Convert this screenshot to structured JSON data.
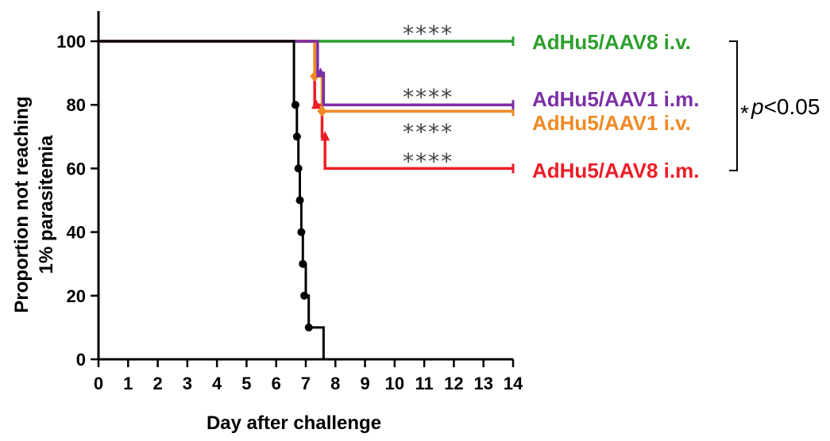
{
  "chart_data": {
    "type": "line",
    "subtype": "kaplan-meier step",
    "title": "",
    "xlabel": "Day after challenge",
    "ylabel_lines": [
      "Proportion not reaching",
      "1% parasitemia"
    ],
    "xlim": [
      0,
      14
    ],
    "ylim": [
      0,
      100
    ],
    "x_ticks": [
      "0",
      "1",
      "2",
      "3",
      "4",
      "5",
      "6",
      "7",
      "8",
      "9",
      "10",
      "11",
      "12",
      "13",
      "14"
    ],
    "y_ticks": [
      "0",
      "20",
      "40",
      "60",
      "80",
      "100"
    ],
    "grid": false,
    "series": [
      {
        "label": "",
        "color": "#000000",
        "marker": "circle",
        "steps": [
          [
            0,
            100
          ],
          [
            6.6,
            100
          ],
          [
            6.6,
            80
          ],
          [
            6.7,
            80
          ],
          [
            6.7,
            70
          ],
          [
            6.75,
            70
          ],
          [
            6.75,
            60
          ],
          [
            6.8,
            60
          ],
          [
            6.8,
            50
          ],
          [
            6.85,
            50
          ],
          [
            6.85,
            40
          ],
          [
            6.9,
            40
          ],
          [
            6.9,
            30
          ],
          [
            7.0,
            30
          ],
          [
            7.0,
            20
          ],
          [
            7.1,
            20
          ],
          [
            7.1,
            10
          ],
          [
            7.6,
            10
          ],
          [
            7.6,
            0
          ]
        ],
        "markers": [
          [
            6.65,
            80
          ],
          [
            6.7,
            70
          ],
          [
            6.75,
            60
          ],
          [
            6.8,
            50
          ],
          [
            6.85,
            40
          ],
          [
            6.9,
            30
          ],
          [
            6.95,
            20
          ],
          [
            7.1,
            10
          ]
        ]
      },
      {
        "label": "AdHu5/AAV8 i.v.",
        "color": "#2ca02c",
        "marker": "none",
        "steps": [
          [
            0,
            100
          ],
          [
            14,
            100
          ]
        ],
        "markers": []
      },
      {
        "label": "AdHu5/AAV1 i.m.",
        "color": "#7b2fa5",
        "marker": "triangle",
        "steps": [
          [
            0,
            100
          ],
          [
            7.4,
            100
          ],
          [
            7.4,
            90
          ],
          [
            7.6,
            90
          ],
          [
            7.6,
            80
          ],
          [
            14,
            80
          ]
        ],
        "markers": [
          [
            7.5,
            90
          ]
        ]
      },
      {
        "label": "AdHu5/AAV1 i.v.",
        "color": "#f08a24",
        "marker": "diamond",
        "steps": [
          [
            0,
            100
          ],
          [
            7.3,
            100
          ],
          [
            7.3,
            89
          ],
          [
            7.55,
            89
          ],
          [
            7.55,
            78
          ],
          [
            14,
            78
          ]
        ],
        "markers": [
          [
            7.3,
            89
          ],
          [
            7.55,
            78
          ]
        ]
      },
      {
        "label": "AdHu5/AAV8 i.m.",
        "color": "#ee1c25",
        "marker": "triangle",
        "steps": [
          [
            0,
            100
          ],
          [
            7.3,
            100
          ],
          [
            7.3,
            80
          ],
          [
            7.55,
            80
          ],
          [
            7.55,
            70
          ],
          [
            7.65,
            70
          ],
          [
            7.65,
            60
          ],
          [
            14,
            60
          ]
        ],
        "markers": [
          [
            7.35,
            80
          ],
          [
            7.65,
            70
          ]
        ]
      }
    ],
    "annotations": {
      "significance": [
        {
          "text": "****",
          "x": 11.0,
          "y": 100
        },
        {
          "text": "****",
          "x": 11.0,
          "y": 80
        },
        {
          "text": "****",
          "x": 11.0,
          "y": 78
        },
        {
          "text": "****",
          "x": 11.0,
          "y": 60
        }
      ],
      "bracket_pvalue": {
        "star": "*",
        "italic": "p",
        "rest": "<0.05"
      }
    }
  }
}
